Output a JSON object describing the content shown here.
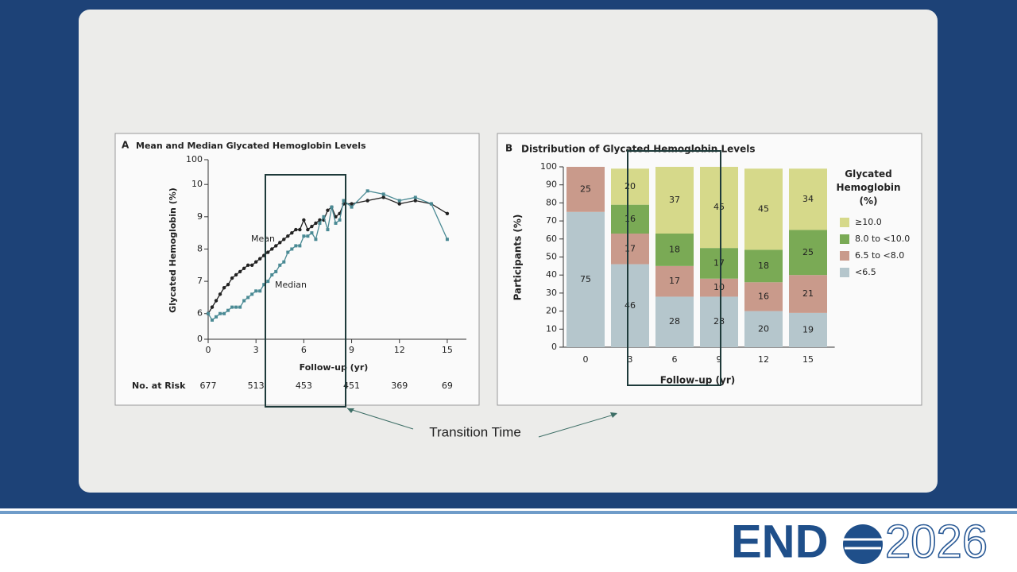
{
  "chart_data": [
    {
      "type": "line",
      "panel": "A",
      "title": "Mean and Median Glycated Hemoglobin Levels",
      "x_label": "Follow-up (yr)",
      "y_label": "Glycated Hemoglobin (%)",
      "x": [
        0,
        0.25,
        0.5,
        0.75,
        1,
        1.25,
        1.5,
        1.75,
        2,
        2.25,
        2.5,
        2.75,
        3,
        3.25,
        3.5,
        3.75,
        4,
        4.25,
        4.5,
        4.75,
        5,
        5.25,
        5.5,
        5.75,
        6,
        6.25,
        6.5,
        6.75,
        7,
        7.25,
        7.5,
        7.75,
        8,
        8.25,
        8.5,
        9,
        10,
        11,
        12,
        13,
        14,
        15
      ],
      "series": [
        {
          "name": "Mean",
          "color": "#222222",
          "marker": "circle",
          "values": [
            6.0,
            6.2,
            6.4,
            6.6,
            6.8,
            6.9,
            7.1,
            7.2,
            7.3,
            7.4,
            7.5,
            7.5,
            7.6,
            7.7,
            7.8,
            7.9,
            8.0,
            8.1,
            8.2,
            8.3,
            8.4,
            8.5,
            8.6,
            8.6,
            8.9,
            8.6,
            8.7,
            8.8,
            8.9,
            8.9,
            9.2,
            9.3,
            9.0,
            9.1,
            9.4,
            9.4,
            9.5,
            9.6,
            9.4,
            9.5,
            9.4,
            9.1
          ]
        },
        {
          "name": "Median",
          "color": "#4a8a94",
          "marker": "square",
          "values": [
            6.0,
            5.8,
            5.9,
            6.0,
            6.0,
            6.1,
            6.2,
            6.2,
            6.2,
            6.4,
            6.5,
            6.6,
            6.7,
            6.7,
            6.9,
            7.0,
            7.2,
            7.3,
            7.5,
            7.6,
            7.9,
            8.0,
            8.1,
            8.1,
            8.4,
            8.4,
            8.5,
            8.3,
            8.8,
            9.0,
            8.6,
            9.3,
            8.8,
            8.9,
            9.5,
            9.3,
            9.8,
            9.7,
            9.5,
            9.6,
            9.4,
            8.3
          ]
        }
      ],
      "xlim": [
        0,
        16.2
      ],
      "xticks": [
        0,
        3,
        6,
        9,
        12,
        15
      ],
      "ylim": [
        5.6,
        10.3
      ],
      "yticks": [
        0,
        6,
        7,
        8,
        9,
        10,
        100
      ],
      "axis_break": true,
      "risk_table": {
        "label": "No. at Risk",
        "x": [
          0,
          3,
          6,
          9,
          12,
          15
        ],
        "values": [
          677,
          513,
          453,
          451,
          369,
          69
        ]
      }
    },
    {
      "type": "stacked_bar",
      "panel": "B",
      "title": "Distribution of Glycated Hemoglobin Levels",
      "x_label": "Follow-up (yr)",
      "y_label": "Participants (%)",
      "categories": [
        "0",
        "3",
        "6",
        "9",
        "12",
        "15"
      ],
      "series": [
        {
          "name": "<6.5",
          "color": "#b5c6cc",
          "values": [
            75,
            46,
            28,
            28,
            20,
            19
          ]
        },
        {
          "name": "6.5 to <8.0",
          "color": "#c99a8b",
          "values": [
            25,
            17,
            17,
            10,
            16,
            21
          ]
        },
        {
          "name": "8.0 to <10.0",
          "color": "#7aaa55",
          "values": [
            0,
            16,
            18,
            17,
            18,
            25
          ]
        },
        {
          "name": "≥10.0",
          "color": "#d6d98a",
          "values": [
            0,
            20,
            37,
            45,
            45,
            34
          ]
        }
      ],
      "ylim": [
        0,
        100
      ],
      "yticks": [
        0,
        10,
        20,
        30,
        40,
        50,
        60,
        70,
        80,
        90,
        100
      ],
      "legend_title": "Glycated Hemoglobin (%)",
      "legend": "right"
    }
  ],
  "slide": {
    "annotation": "Transition Time",
    "logo": {
      "text": "END",
      "year": "2026"
    }
  }
}
